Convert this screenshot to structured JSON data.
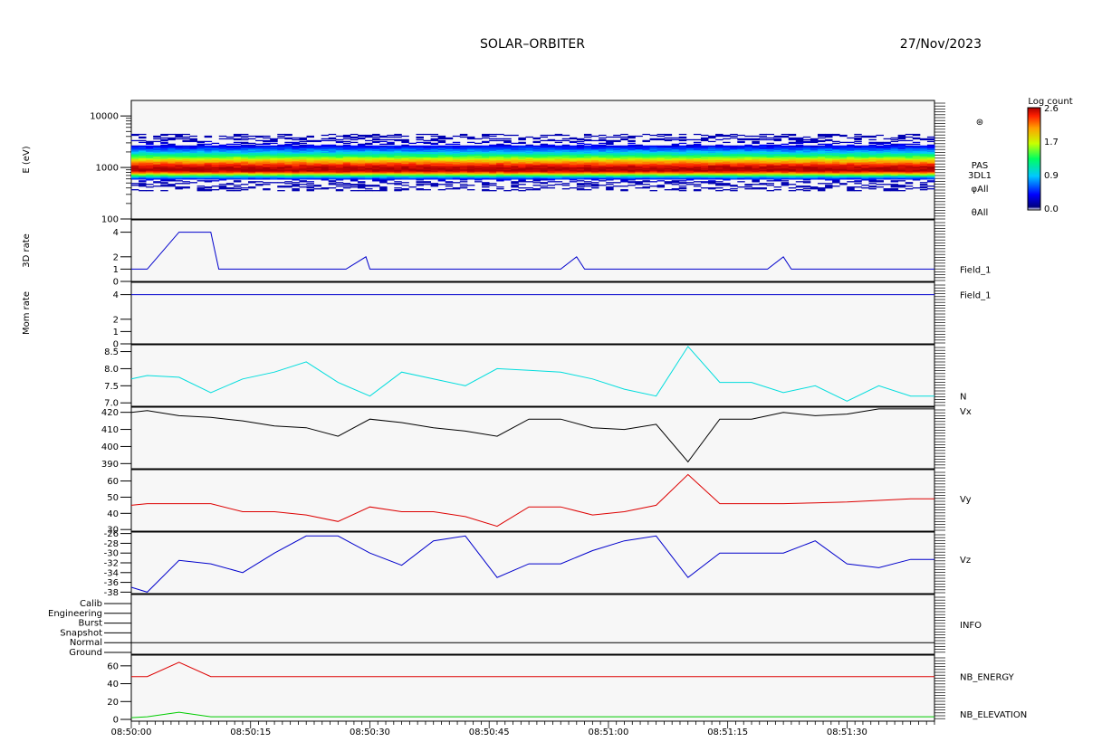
{
  "header": {
    "title": "SOLAR–ORBITER",
    "date": "27/Nov/2023"
  },
  "colorbar": {
    "label": "Log count",
    "ticks": [
      "2.6",
      "1.7",
      "0.9",
      "0.0"
    ],
    "range": [
      0,
      2.6
    ]
  },
  "time_axis": {
    "ticks": [
      "08:50:00",
      "08:50:15",
      "08:50:30",
      "08:50:45",
      "08:51:00",
      "08:51:15",
      "08:51:30"
    ]
  },
  "chart_data": [
    {
      "type": "heatmap",
      "ylabel": "E (eV)",
      "yscale": "log",
      "ylim": [
        100,
        20000
      ],
      "yticks": [
        "10000",
        "1000",
        "100"
      ],
      "right_labels": [
        "⊛",
        "PAS",
        "3DL1",
        "φAll",
        "θAll"
      ],
      "energy_peak_ev": 900,
      "energy_range_ev": [
        350,
        4500
      ]
    },
    {
      "type": "line",
      "ylabel": "3D rate",
      "ylim": [
        0,
        5
      ],
      "yticks": [
        "4",
        "2",
        "1",
        "0"
      ],
      "series": [
        {
          "name": "Field_1",
          "color": "#0000cc",
          "x": [
            0,
            2,
            6,
            10,
            11,
            27,
            29.5,
            30,
            31,
            54,
            56,
            57,
            80,
            82,
            83,
            101
          ],
          "values": [
            1,
            1,
            4,
            4,
            1,
            1,
            2,
            1,
            1,
            1,
            2,
            1,
            1,
            2,
            1,
            1
          ]
        }
      ]
    },
    {
      "type": "line",
      "ylabel": "Mom rate",
      "ylim": [
        0,
        5
      ],
      "yticks": [
        "4",
        "2",
        "1",
        "0"
      ],
      "series": [
        {
          "name": "Field_1",
          "color": "#0000cc",
          "x": [
            0,
            101
          ],
          "values": [
            4,
            4
          ]
        }
      ]
    },
    {
      "type": "line",
      "ylabel": "",
      "ylim": [
        6.9,
        8.7
      ],
      "yticks": [
        "8.5",
        "8.0",
        "7.5",
        "7.0"
      ],
      "series": [
        {
          "name": "N",
          "color": "#00dddd",
          "x": [
            0,
            2,
            6,
            10,
            14,
            18,
            22,
            26,
            30,
            34,
            38,
            42,
            46,
            50,
            54,
            58,
            62,
            66,
            70,
            74,
            78,
            82,
            86,
            90,
            94,
            98,
            101
          ],
          "values": [
            7.7,
            7.8,
            7.75,
            7.3,
            7.7,
            7.9,
            8.2,
            7.6,
            7.2,
            7.9,
            7.7,
            7.5,
            8.0,
            7.95,
            7.9,
            7.7,
            7.4,
            7.2,
            8.65,
            7.6,
            7.6,
            7.3,
            7.5,
            7.05,
            7.5,
            7.2,
            7.2
          ]
        }
      ]
    },
    {
      "type": "line",
      "ylabel": "",
      "ylim": [
        387,
        423
      ],
      "yticks": [
        "420",
        "410",
        "400",
        "390"
      ],
      "series": [
        {
          "name": "Vx",
          "color": "#000000",
          "x": [
            0,
            2,
            6,
            10,
            14,
            18,
            22,
            26,
            30,
            34,
            38,
            42,
            46,
            50,
            54,
            58,
            62,
            66,
            70,
            74,
            78,
            82,
            86,
            90,
            94,
            98,
            101
          ],
          "values": [
            420,
            421,
            418,
            417,
            415,
            412,
            411,
            406,
            416,
            414,
            411,
            409,
            406,
            416,
            416,
            411,
            410,
            413,
            391,
            416,
            416,
            420,
            418,
            419,
            422,
            422,
            422
          ]
        }
      ]
    },
    {
      "type": "line",
      "ylabel": "",
      "ylim": [
        29,
        67
      ],
      "yticks": [
        "60",
        "50",
        "40",
        "30"
      ],
      "series": [
        {
          "name": "Vy",
          "color": "#dd0000",
          "x": [
            0,
            2,
            6,
            10,
            14,
            18,
            22,
            26,
            30,
            34,
            38,
            42,
            46,
            50,
            54,
            58,
            62,
            66,
            70,
            74,
            78,
            82,
            86,
            90,
            94,
            98,
            101
          ],
          "values": [
            45,
            46,
            46,
            46,
            41,
            41,
            39,
            35,
            44,
            41,
            41,
            38,
            32,
            44,
            44,
            39,
            41,
            45,
            64,
            46,
            46,
            46,
            46.5,
            47,
            48,
            49,
            49
          ]
        }
      ]
    },
    {
      "type": "line",
      "ylabel": "",
      "ylim": [
        -38.3,
        -25.7
      ],
      "yticks": [
        "-26",
        "-28",
        "-30",
        "-32",
        "-34",
        "-36",
        "-38"
      ],
      "series": [
        {
          "name": "Vz",
          "color": "#0000cc",
          "x": [
            0,
            2,
            6,
            10,
            14,
            18,
            22,
            26,
            30,
            34,
            38,
            42,
            46,
            50,
            54,
            58,
            62,
            66,
            70,
            74,
            78,
            82,
            86,
            90,
            94,
            98,
            101
          ],
          "values": [
            -37,
            -38,
            -31.5,
            -32.2,
            -34,
            -30,
            -26.5,
            -26.5,
            -30,
            -32.5,
            -27.5,
            -26.5,
            -35,
            -32.2,
            -32.2,
            -29.5,
            -27.5,
            -26.5,
            -35,
            -30,
            -30,
            -30,
            -27.5,
            -32.2,
            -33,
            -31.3,
            -31.3
          ]
        }
      ]
    },
    {
      "type": "table",
      "ylabel": "",
      "levels": [
        "Calib",
        "Engineering",
        "Burst",
        "Snapshot",
        "Normal",
        "Ground"
      ],
      "right_label": "INFO",
      "selected": "Normal"
    },
    {
      "type": "line",
      "ylabel": "",
      "ylim": [
        -2,
        72
      ],
      "yticks": [
        "60",
        "40",
        "20",
        "0"
      ],
      "series": [
        {
          "name": "NB_ENERGY",
          "color": "#dd0000",
          "x": [
            0,
            2,
            6,
            10,
            101
          ],
          "values": [
            48,
            48,
            64,
            48,
            48
          ]
        },
        {
          "name": "NB_ELEVATION",
          "color": "#00cc00",
          "x": [
            0,
            2,
            6,
            10,
            101
          ],
          "values": [
            2,
            3,
            8,
            3,
            3
          ]
        }
      ]
    }
  ]
}
